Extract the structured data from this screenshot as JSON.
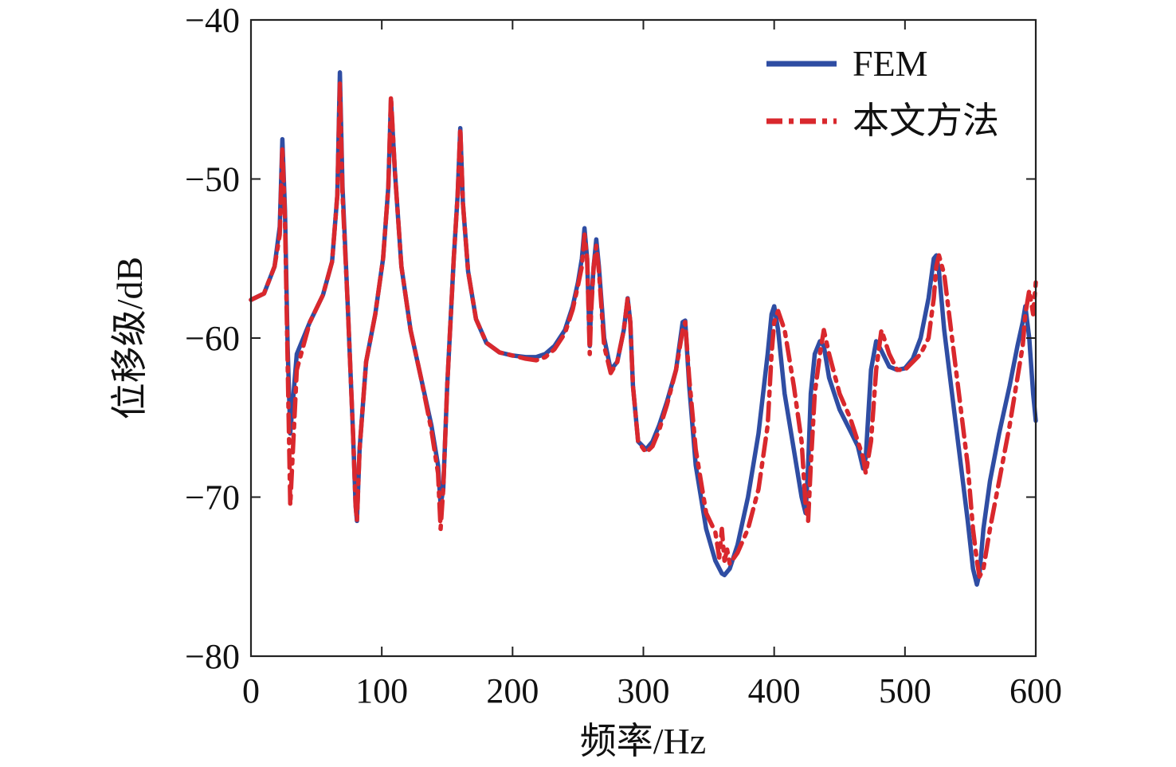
{
  "chart_data": {
    "type": "line",
    "title": "",
    "xlabel": "频率/Hz",
    "ylabel": "位移级/dB",
    "xlim": [
      0,
      600
    ],
    "ylim": [
      -80,
      -40
    ],
    "xticks": [
      0,
      100,
      200,
      300,
      400,
      500,
      600
    ],
    "yticks": [
      -80,
      -70,
      -60,
      -50,
      -40
    ],
    "xtick_labels": [
      "0",
      "100",
      "200",
      "300",
      "400",
      "500",
      "600"
    ],
    "ytick_labels": [
      "−80",
      "−70",
      "−60",
      "−50",
      "−40"
    ],
    "grid": false,
    "legend_position": "top-right",
    "series": [
      {
        "name": "FEM",
        "color": "#2f4da3",
        "style": "solid",
        "x": [
          0,
          10,
          18,
          22,
          24,
          26,
          28,
          30,
          35,
          45,
          55,
          62,
          66,
          68,
          70,
          74,
          78,
          80,
          81,
          83,
          88,
          95,
          101,
          105,
          107,
          110,
          115,
          122,
          130,
          138,
          143,
          145,
          147,
          150,
          155,
          158,
          160,
          162,
          166,
          172,
          180,
          190,
          200,
          210,
          218,
          225,
          232,
          240,
          246,
          250,
          253,
          255,
          257,
          259,
          260,
          262,
          264,
          266,
          270,
          275,
          280,
          285,
          288,
          290,
          292,
          296,
          302,
          307,
          312,
          318,
          325,
          330,
          332,
          335,
          340,
          348,
          355,
          360,
          362,
          366,
          372,
          380,
          388,
          395,
          398,
          400,
          403,
          408,
          415,
          421,
          424,
          426,
          428,
          431,
          435,
          438,
          442,
          450,
          458,
          464,
          468,
          470,
          474,
          478,
          482,
          488,
          494,
          500,
          506,
          512,
          518,
          522,
          524,
          526,
          530,
          536,
          542,
          548,
          552,
          555,
          557,
          560,
          565,
          572,
          580,
          586,
          590,
          592,
          595,
          598,
          600
        ],
        "y": [
          -57.6,
          -57.2,
          -55.5,
          -53.0,
          -47.5,
          -52.0,
          -60.5,
          -66.0,
          -61.0,
          -59.0,
          -57.3,
          -55.2,
          -51.0,
          -43.3,
          -50.5,
          -58.0,
          -66.0,
          -70.5,
          -71.5,
          -67.0,
          -61.5,
          -58.5,
          -55.0,
          -50.5,
          -45.0,
          -49.5,
          -55.5,
          -59.5,
          -62.5,
          -65.5,
          -68.0,
          -70.5,
          -69.5,
          -63.0,
          -55.0,
          -51.0,
          -46.8,
          -51.5,
          -55.8,
          -58.8,
          -60.3,
          -60.9,
          -61.1,
          -61.2,
          -61.2,
          -61.0,
          -60.5,
          -59.5,
          -58.0,
          -56.5,
          -55.0,
          -53.1,
          -55.0,
          -60.5,
          -58.0,
          -55.5,
          -53.8,
          -55.5,
          -60.0,
          -62.0,
          -61.5,
          -59.5,
          -57.5,
          -59.0,
          -63.0,
          -66.5,
          -67.0,
          -66.5,
          -65.5,
          -64.0,
          -62.0,
          -59.0,
          -58.9,
          -63.0,
          -68.0,
          -72.0,
          -74.0,
          -74.8,
          -74.9,
          -74.5,
          -73.0,
          -70.0,
          -66.0,
          -61.0,
          -58.5,
          -58.0,
          -59.5,
          -63.5,
          -67.0,
          -70.0,
          -71.0,
          -68.0,
          -63.5,
          -61.0,
          -60.2,
          -60.5,
          -62.5,
          -64.5,
          -65.8,
          -66.8,
          -68.2,
          -67.5,
          -62.0,
          -60.2,
          -60.8,
          -61.8,
          -62.0,
          -61.9,
          -61.3,
          -60.0,
          -57.5,
          -55.0,
          -54.8,
          -55.8,
          -59.5,
          -63.5,
          -67.5,
          -71.5,
          -74.5,
          -75.5,
          -74.8,
          -72.0,
          -69.0,
          -66.0,
          -63.0,
          -60.5,
          -59.0,
          -58.0,
          -60.0,
          -63.5,
          -65.2
        ]
      },
      {
        "name": "本文方法",
        "color": "#d9282d",
        "style": "dashdot",
        "x": [
          0,
          10,
          18,
          22,
          24,
          26,
          28,
          30,
          35,
          45,
          55,
          62,
          66,
          68,
          70,
          74,
          78,
          80,
          81,
          83,
          88,
          95,
          101,
          105,
          107,
          110,
          115,
          122,
          130,
          138,
          143,
          145,
          147,
          150,
          155,
          158,
          160,
          162,
          166,
          172,
          180,
          190,
          200,
          210,
          218,
          225,
          232,
          240,
          246,
          250,
          253,
          255,
          257,
          259,
          260,
          262,
          264,
          266,
          270,
          275,
          280,
          285,
          288,
          290,
          292,
          296,
          302,
          307,
          312,
          318,
          325,
          330,
          332,
          335,
          340,
          348,
          355,
          358,
          360,
          362,
          364,
          366,
          372,
          380,
          388,
          395,
          398,
          400,
          403,
          408,
          415,
          421,
          424,
          426,
          428,
          431,
          435,
          438,
          442,
          450,
          458,
          464,
          468,
          470,
          474,
          478,
          482,
          488,
          494,
          500,
          506,
          512,
          518,
          522,
          524,
          526,
          530,
          536,
          542,
          548,
          552,
          555,
          557,
          560,
          565,
          572,
          580,
          586,
          590,
          592,
          595,
          598,
          600
        ],
        "y": [
          -57.6,
          -57.2,
          -55.5,
          -53.5,
          -48.0,
          -52.5,
          -61.5,
          -70.5,
          -62.0,
          -59.0,
          -57.3,
          -55.2,
          -51.0,
          -44.0,
          -51.0,
          -58.0,
          -66.0,
          -70.5,
          -71.5,
          -67.0,
          -61.5,
          -58.5,
          -55.0,
          -50.5,
          -44.8,
          -49.5,
          -55.5,
          -59.5,
          -62.5,
          -65.8,
          -68.5,
          -72.0,
          -69.5,
          -63.0,
          -55.0,
          -51.0,
          -46.8,
          -51.5,
          -55.8,
          -58.8,
          -60.3,
          -60.9,
          -61.1,
          -61.3,
          -61.4,
          -61.2,
          -60.7,
          -59.7,
          -58.2,
          -56.7,
          -55.5,
          -53.5,
          -55.0,
          -61.0,
          -58.5,
          -55.5,
          -54.2,
          -55.8,
          -60.5,
          -62.2,
          -61.5,
          -59.5,
          -57.5,
          -59.0,
          -63.0,
          -66.5,
          -67.2,
          -66.8,
          -65.8,
          -64.2,
          -62.0,
          -59.5,
          -59.0,
          -62.5,
          -67.0,
          -71.0,
          -72.2,
          -73.8,
          -72.0,
          -74.0,
          -73.3,
          -74.2,
          -73.5,
          -72.0,
          -69.5,
          -65.5,
          -61.0,
          -59.0,
          -58.3,
          -59.5,
          -63.0,
          -66.5,
          -70.5,
          -71.5,
          -68.0,
          -63.5,
          -61.0,
          -59.5,
          -61.0,
          -63.5,
          -65.0,
          -66.5,
          -67.5,
          -68.5,
          -66.5,
          -62.0,
          -59.5,
          -61.0,
          -62.0,
          -62.0,
          -61.5,
          -61.0,
          -60.0,
          -57.5,
          -55.5,
          -54.8,
          -56.0,
          -60.0,
          -64.0,
          -68.0,
          -72.0,
          -74.0,
          -75.0,
          -74.5,
          -72.0,
          -69.0,
          -65.5,
          -62.5,
          -60.5,
          -58.5,
          -57.0,
          -58.5,
          -56.5
        ]
      }
    ]
  }
}
